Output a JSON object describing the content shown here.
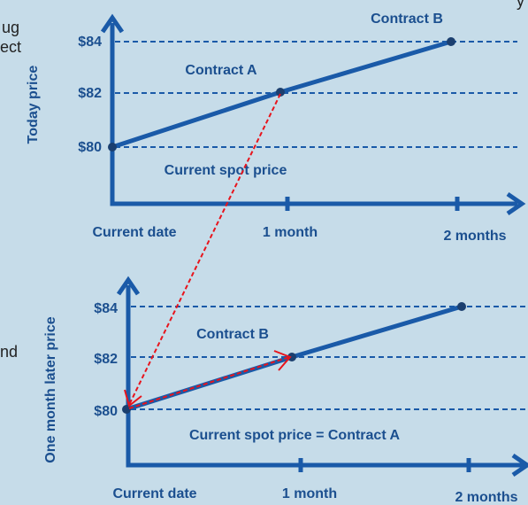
{
  "top_chart": {
    "y_label": "Today price",
    "y_ticks": [
      "$84",
      "$82",
      "$80"
    ],
    "contract_a": "Contract A",
    "contract_b": "Contract B",
    "spot": "Current spot price",
    "x_ticks": [
      "Current date",
      "1 month",
      "2 months"
    ]
  },
  "bottom_chart": {
    "y_label": "One month later price",
    "y_ticks": [
      "$84",
      "$82",
      "$80"
    ],
    "contract_b": "Contract B",
    "spot": "Current spot price = Contract A",
    "x_ticks": [
      "Current date",
      "1 month",
      "2 months"
    ]
  },
  "fragments": [
    "ug",
    "ect",
    "nd",
    "y"
  ]
}
